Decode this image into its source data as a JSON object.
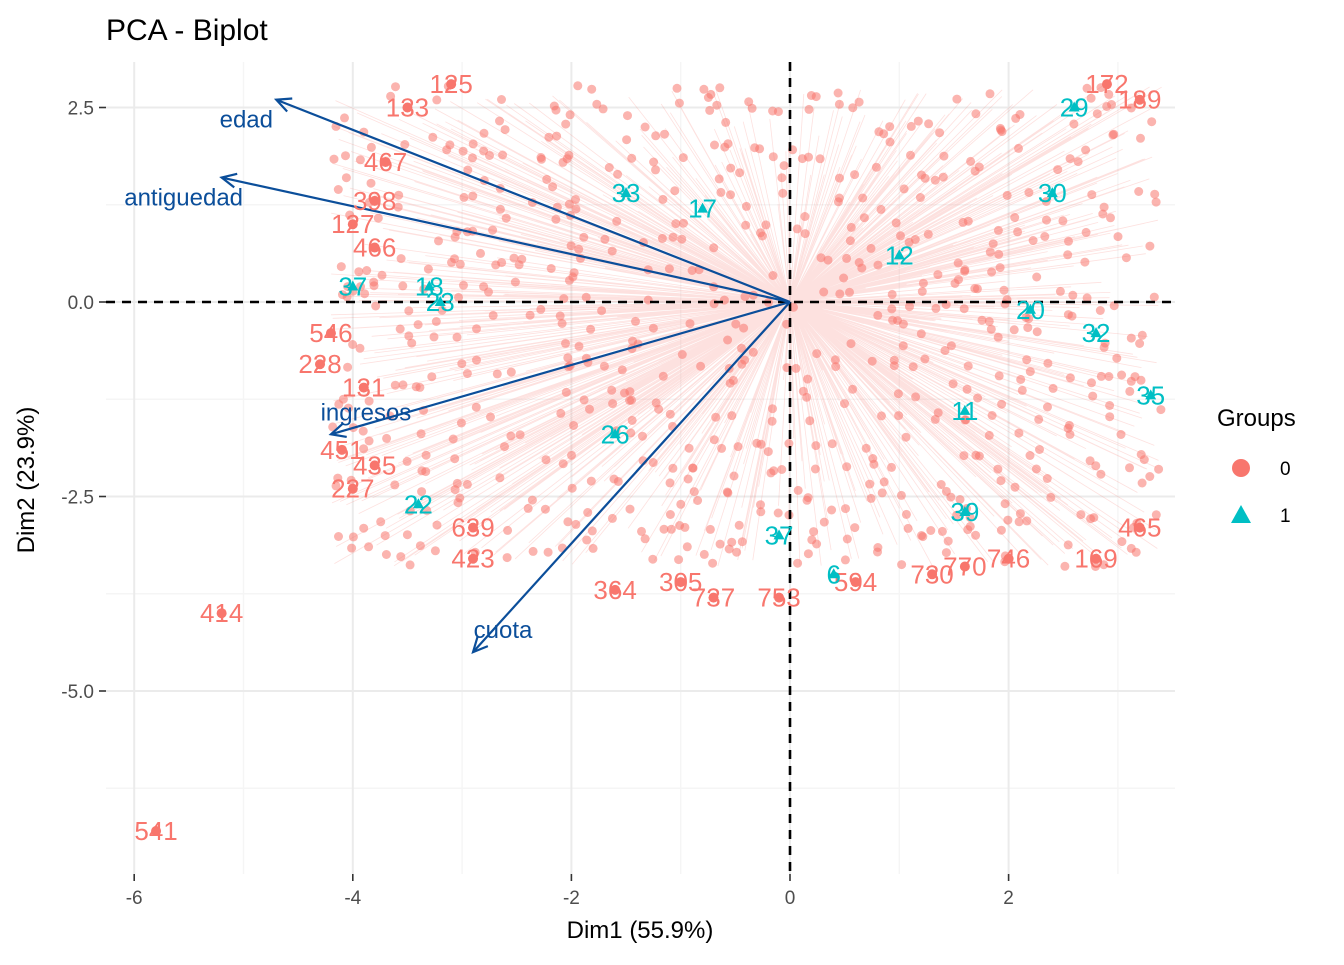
{
  "colors": {
    "group0": "#F8766D",
    "group1": "#00BFC4",
    "arrow": "#0B4E9A",
    "grid_major": "#EBEBEB",
    "grid_minor": "#F5F5F5",
    "refline": "#000000"
  },
  "chart_data": {
    "type": "scatter",
    "title": "PCA - Biplot",
    "xlabel": "Dim1 (55.9%)",
    "ylabel": "Dim2 (23.9%)",
    "xlim": [
      -6.0,
      3.5
    ],
    "ylim": [
      -7.2,
      3.1
    ],
    "xticks": [
      -6,
      -4,
      -2,
      0,
      2
    ],
    "xtick_labels": [
      "-6",
      "-4",
      "-2",
      "0",
      "2"
    ],
    "yticks": [
      2.5,
      0.0,
      -2.5,
      -5.0
    ],
    "ytick_labels": [
      "2.5",
      "0.0",
      "-2.5",
      "-5.0"
    ],
    "grid": true,
    "reference_lines": {
      "x": 0,
      "y": 0,
      "style": "dashed"
    },
    "legend": {
      "title": "Groups",
      "placement": "right",
      "entries": [
        {
          "label": "0",
          "marker": "circle",
          "color": "#F8766D"
        },
        {
          "label": "1",
          "marker": "triangle",
          "color": "#00BFC4"
        }
      ]
    },
    "variables": [
      {
        "name": "edad",
        "x": -4.7,
        "y": 2.6
      },
      {
        "name": "antiguedad",
        "x": -5.2,
        "y": 1.6
      },
      {
        "name": "ingresos",
        "x": -4.2,
        "y": -1.7
      },
      {
        "name": "cuota",
        "x": -2.9,
        "y": -4.5
      }
    ],
    "points": [
      {
        "label": "541",
        "x": -5.8,
        "y": -6.8,
        "group": "0"
      },
      {
        "label": "414",
        "x": -5.2,
        "y": -4.0,
        "group": "0"
      },
      {
        "label": "227",
        "x": -4.0,
        "y": -2.4,
        "group": "0"
      },
      {
        "label": "451",
        "x": -4.1,
        "y": -1.9,
        "group": "0"
      },
      {
        "label": "435",
        "x": -3.8,
        "y": -2.1,
        "group": "0"
      },
      {
        "label": "228",
        "x": -4.3,
        "y": -0.8,
        "group": "0"
      },
      {
        "label": "546",
        "x": -4.2,
        "y": -0.4,
        "group": "0"
      },
      {
        "label": "131",
        "x": -3.9,
        "y": -1.1,
        "group": "0"
      },
      {
        "label": "133",
        "x": -3.5,
        "y": 2.5,
        "group": "0"
      },
      {
        "label": "125",
        "x": -3.1,
        "y": 2.8,
        "group": "0"
      },
      {
        "label": "467",
        "x": -3.7,
        "y": 1.8,
        "group": "0"
      },
      {
        "label": "398",
        "x": -3.8,
        "y": 1.3,
        "group": "0"
      },
      {
        "label": "127",
        "x": -4.0,
        "y": 1.0,
        "group": "0"
      },
      {
        "label": "466",
        "x": -3.8,
        "y": 0.7,
        "group": "0"
      },
      {
        "label": "423",
        "x": -2.9,
        "y": -3.3,
        "group": "0"
      },
      {
        "label": "639",
        "x": -2.9,
        "y": -2.9,
        "group": "0"
      },
      {
        "label": "364",
        "x": -1.6,
        "y": -3.7,
        "group": "0"
      },
      {
        "label": "305",
        "x": -1.0,
        "y": -3.6,
        "group": "0"
      },
      {
        "label": "737",
        "x": -0.7,
        "y": -3.8,
        "group": "0"
      },
      {
        "label": "753",
        "x": -0.1,
        "y": -3.8,
        "group": "0"
      },
      {
        "label": "594",
        "x": 0.6,
        "y": -3.6,
        "group": "0"
      },
      {
        "label": "730",
        "x": 1.3,
        "y": -3.5,
        "group": "0"
      },
      {
        "label": "770",
        "x": 1.6,
        "y": -3.4,
        "group": "0"
      },
      {
        "label": "746",
        "x": 2.0,
        "y": -3.3,
        "group": "0"
      },
      {
        "label": "169",
        "x": 2.8,
        "y": -3.3,
        "group": "0"
      },
      {
        "label": "465",
        "x": 3.2,
        "y": -2.9,
        "group": "0"
      },
      {
        "label": "172",
        "x": 2.9,
        "y": 2.8,
        "group": "0"
      },
      {
        "label": "189",
        "x": 3.2,
        "y": 2.6,
        "group": "0"
      },
      {
        "label": "29",
        "x": 2.6,
        "y": 2.5,
        "group": "1"
      },
      {
        "label": "17",
        "x": -0.8,
        "y": 1.2,
        "group": "1"
      },
      {
        "label": "33",
        "x": -1.5,
        "y": 1.4,
        "group": "1"
      },
      {
        "label": "12",
        "x": 1.0,
        "y": 0.6,
        "group": "1"
      },
      {
        "label": "30",
        "x": 2.4,
        "y": 1.4,
        "group": "1"
      },
      {
        "label": "37",
        "x": -4.0,
        "y": 0.2,
        "group": "1"
      },
      {
        "label": "18",
        "x": -3.3,
        "y": 0.2,
        "group": "1"
      },
      {
        "label": "23",
        "x": -3.2,
        "y": 0.0,
        "group": "1"
      },
      {
        "label": "20",
        "x": 2.2,
        "y": -0.1,
        "group": "1"
      },
      {
        "label": "32",
        "x": 2.8,
        "y": -0.4,
        "group": "1"
      },
      {
        "label": "35",
        "x": 3.3,
        "y": -1.2,
        "group": "1"
      },
      {
        "label": "22",
        "x": -3.4,
        "y": -2.6,
        "group": "1"
      },
      {
        "label": "26",
        "x": -1.6,
        "y": -1.7,
        "group": "1"
      },
      {
        "label": "39",
        "x": 1.6,
        "y": -2.7,
        "group": "1"
      },
      {
        "label": "37",
        "x": -0.1,
        "y": -3.0,
        "group": "1"
      },
      {
        "label": "6",
        "x": 0.4,
        "y": -3.5,
        "group": "1"
      },
      {
        "label": "11",
        "x": 1.6,
        "y": -1.4,
        "group": "1"
      }
    ]
  }
}
